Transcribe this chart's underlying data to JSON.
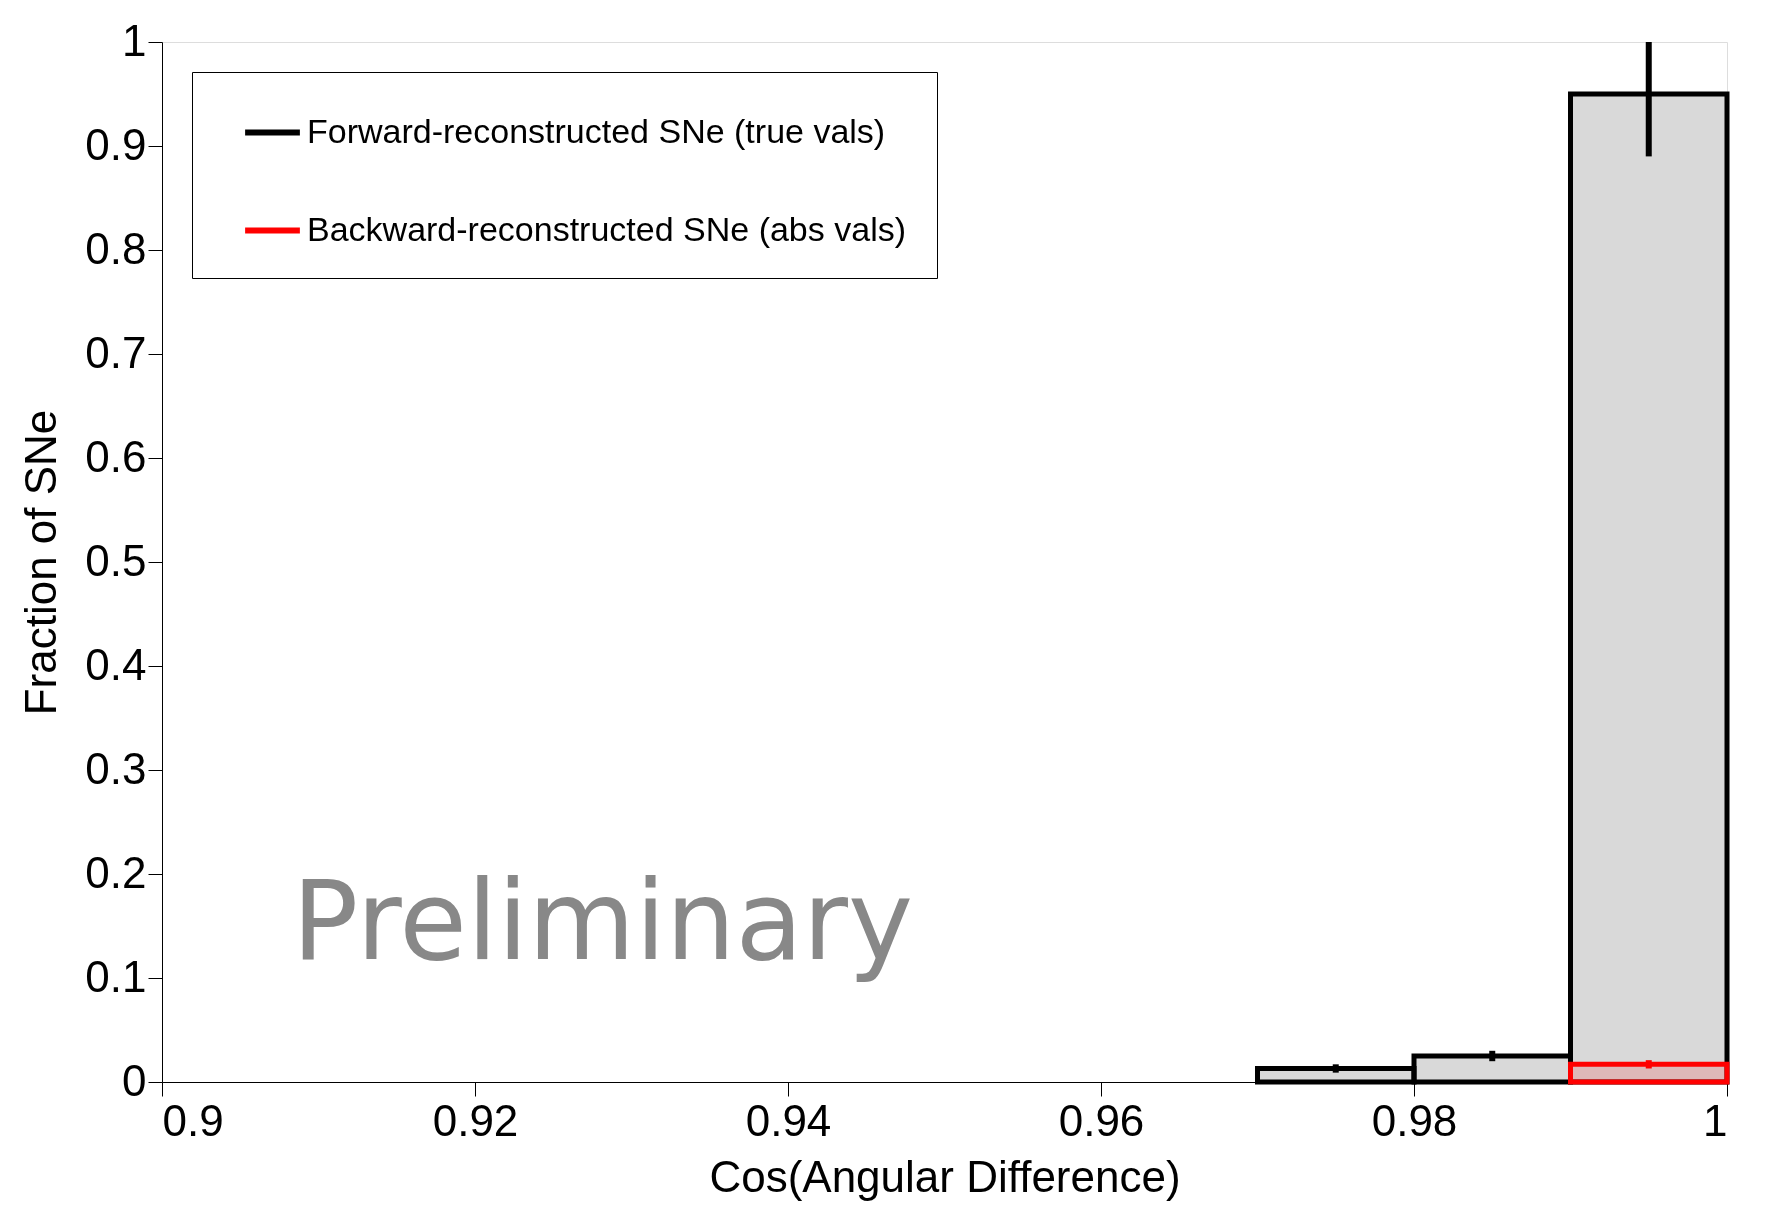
{
  "chart_data": {
    "type": "histogram",
    "xlabel": "Cos(Angular Difference)",
    "ylabel": "Fraction of SNe",
    "bins": [
      0.97,
      0.98,
      0.99,
      1.0
    ],
    "series": [
      {
        "name": "Forward-reconstructed SNe (true vals)",
        "color": "#000000",
        "values": [
          0.013,
          0.025,
          0.95
        ],
        "errors": [
          0.004,
          0.005,
          [
            0.89,
            1.0
          ]
        ]
      },
      {
        "name": "Backward-reconstructed SNe (abs vals)",
        "color": "#ff0000",
        "values": [
          null,
          null,
          0.017
        ],
        "errors": [
          null,
          null,
          0.004
        ]
      }
    ],
    "xlim": [
      0.9,
      1.0
    ],
    "xticks": [
      0.9,
      0.92,
      0.94,
      0.96,
      0.98,
      1
    ],
    "ylim": [
      0,
      1
    ],
    "yticks": [
      0,
      0.1,
      0.2,
      0.3,
      0.4,
      0.5,
      0.6,
      0.7,
      0.8,
      0.9,
      1
    ],
    "grid": false,
    "legend": "top left",
    "annotations": [
      "Preliminary"
    ]
  }
}
